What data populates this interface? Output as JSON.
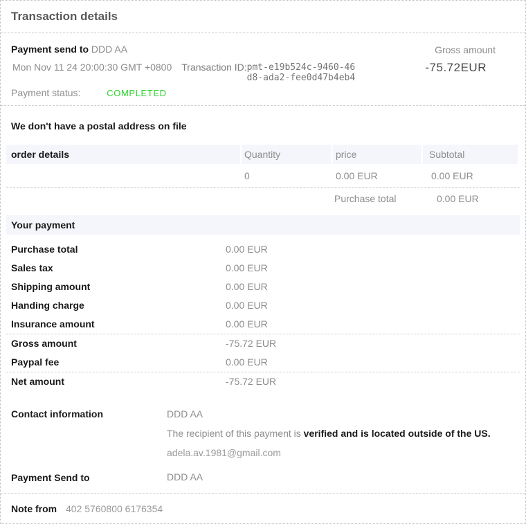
{
  "page": {
    "title": "Transaction details"
  },
  "colors": {
    "status_completed": "#2bd42b",
    "section_bar_bg": "#f4f6fb"
  },
  "payment_header": {
    "send_to_label": "Payment send to",
    "send_to_value": "DDD AA",
    "date": "Mon Nov 11 24 20:00:30 GMT +0800",
    "transaction_id_label": "Transaction ID:",
    "transaction_id": "pmt-e19b524c-9460-46d8-ada2-fee0d47b4eb4",
    "status_label": "Payment status:",
    "status_value": "COMPLETED",
    "gross_amount_label": "Gross amount",
    "gross_amount_value": "-75.72EUR"
  },
  "postal_notice": "We don't have a postal address on file",
  "order_table": {
    "headers": [
      "order details",
      "Quantity",
      "price",
      "Subtotal"
    ],
    "row": {
      "item": "",
      "quantity": "0",
      "price": "0.00 EUR",
      "subtotal": "0.00 EUR"
    },
    "purchase_total_label": "Purchase total",
    "purchase_total_value": "0.00 EUR"
  },
  "your_payment": {
    "title": "Your payment",
    "rows": [
      {
        "label": "Purchase total",
        "value": "0.00 EUR"
      },
      {
        "label": "Sales tax",
        "value": "0.00 EUR"
      },
      {
        "label": "Shipping amount",
        "value": "0.00 EUR"
      },
      {
        "label": "Handing charge",
        "value": "0.00 EUR"
      },
      {
        "label": "Insurance amount",
        "value": "0.00 EUR"
      },
      {
        "label": "Gross amount",
        "value": "-75.72 EUR"
      },
      {
        "label": "Paypal fee",
        "value": "0.00 EUR"
      },
      {
        "label": "Net amount",
        "value": "-75.72 EUR"
      }
    ]
  },
  "contact": {
    "label": "Contact information",
    "name": "DDD AA",
    "recipient_text": "The recipient of this payment is ",
    "recipient_bold": "verified and is located outside of the US.",
    "email": "adela.av.1981@gmail.com"
  },
  "payment_send_to": {
    "label": "Payment Send to",
    "value": "DDD AA"
  },
  "note": {
    "label": "Note from",
    "value": "402 5760800 6176354"
  }
}
